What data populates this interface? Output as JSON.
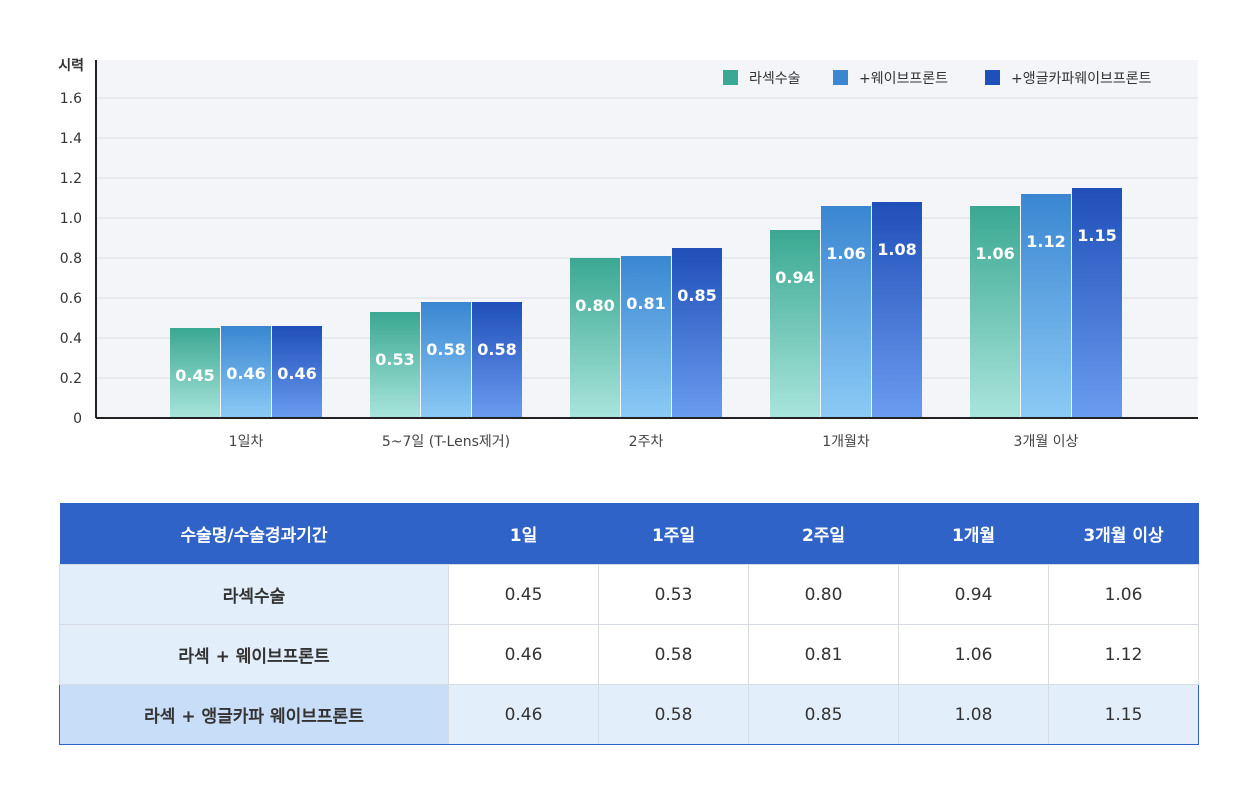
{
  "chart_data": {
    "type": "bar",
    "ylabel": "시력",
    "ylim": [
      0,
      1.8
    ],
    "yticks": [
      "0",
      "0.2",
      "0.4",
      "0.6",
      "0.8",
      "1.0",
      "1.2",
      "1.4",
      "1.6"
    ],
    "categories": [
      "1일차",
      "5~7일 (T-Lens제거)",
      "2주차",
      "1개월차",
      "3개월 이상"
    ],
    "series": [
      {
        "name": "라섹수술",
        "values": [
          0.45,
          0.53,
          0.8,
          0.94,
          1.06
        ],
        "labels": [
          "0.45",
          "0.53",
          "0.80",
          "0.94",
          "1.06"
        ],
        "colors": [
          "#3aa892",
          "#a9e5dc"
        ]
      },
      {
        "name": "+웨이브프론트",
        "values": [
          0.46,
          0.58,
          0.81,
          1.06,
          1.12
        ],
        "labels": [
          "0.46",
          "0.58",
          "0.81",
          "1.06",
          "1.12"
        ],
        "colors": [
          "#3a86d1",
          "#8ccaf6"
        ]
      },
      {
        "name": "+앵글카파웨이브프론트",
        "values": [
          0.46,
          0.58,
          0.85,
          1.08,
          1.15
        ],
        "labels": [
          "0.46",
          "0.58",
          "0.85",
          "1.08",
          "1.15"
        ],
        "colors": [
          "#1f4fb8",
          "#6a9cf0"
        ]
      }
    ],
    "grid": true,
    "legend_position": "top-right"
  },
  "table": {
    "headers": [
      "수술명/수술경과기간",
      "1일",
      "1주일",
      "2주일",
      "1개월",
      "3개월 이상"
    ],
    "rows": [
      {
        "name": "라섹수술",
        "values": [
          "0.45",
          "0.53",
          "0.80",
          "0.94",
          "1.06"
        ]
      },
      {
        "name": "라섹 + 웨이브프론트",
        "values": [
          "0.46",
          "0.58",
          "0.81",
          "1.06",
          "1.12"
        ]
      },
      {
        "name": "라섹 + 앵글카파 웨이브프론트",
        "values": [
          "0.46",
          "0.58",
          "0.85",
          "1.08",
          "1.15"
        ]
      }
    ]
  }
}
